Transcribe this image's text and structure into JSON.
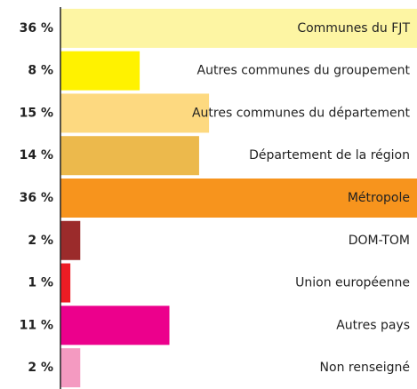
{
  "chart_data": {
    "type": "bar",
    "orientation": "horizontal",
    "categories": [
      "Communes du FJT",
      "Autres communes du groupement",
      "Autres communes du département",
      "Département de la région",
      "Métropole",
      "DOM-TOM",
      "Union européenne",
      "Autres pays",
      "Non renseigné"
    ],
    "values": [
      36,
      8,
      15,
      14,
      36,
      2,
      1,
      11,
      2
    ],
    "value_labels": [
      "36 %",
      "8 %",
      "15 %",
      "14 %",
      "36 %",
      "2 %",
      "1 %",
      "11 %",
      "2 %"
    ],
    "colors": [
      "#fdf5a3",
      "#fff200",
      "#fdd980",
      "#ecb94c",
      "#f7941d",
      "#9b2b2b",
      "#ed1c24",
      "#ec008c",
      "#f49ac1"
    ]
  }
}
